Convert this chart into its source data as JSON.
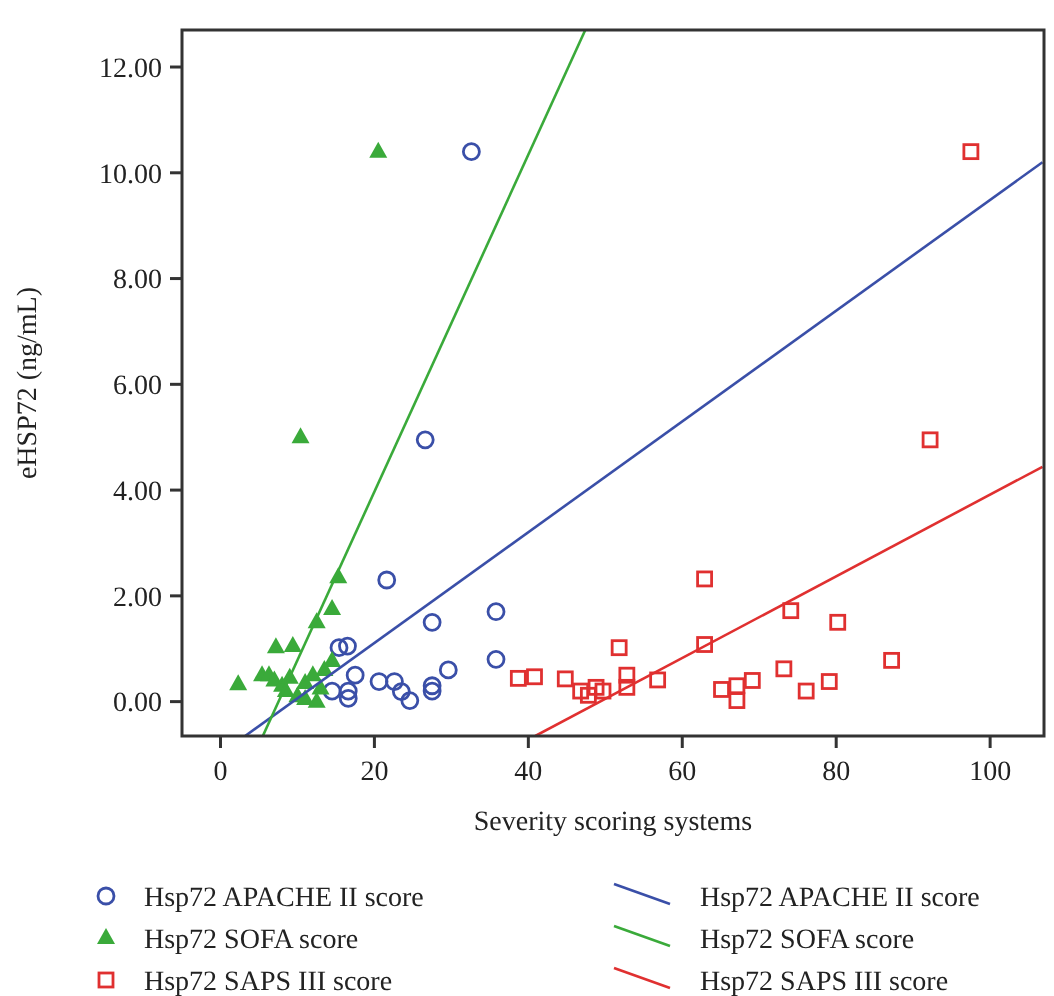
{
  "chart_data": {
    "type": "scatter",
    "xlabel": "Severity scoring systems",
    "ylabel": "eHSP72 (ng/mL)",
    "xlim": [
      -5,
      107
    ],
    "ylim": [
      -0.65,
      12.7
    ],
    "xticks": [
      0,
      20,
      40,
      60,
      80,
      100
    ],
    "yticks": [
      {
        "value": 0,
        "label": "0.00"
      },
      {
        "value": 2,
        "label": "2.00"
      },
      {
        "value": 4,
        "label": "4.00"
      },
      {
        "value": 6,
        "label": "6.00"
      },
      {
        "value": 8,
        "label": "8.00"
      },
      {
        "value": 10,
        "label": "10.00"
      },
      {
        "value": 12,
        "label": "12.00"
      }
    ],
    "grid": false,
    "legend": "bottom",
    "series": [
      {
        "name": "Hsp72 APACHE II score",
        "marker": "circle",
        "color": "#3a4fa8",
        "x": [
          32.6,
          26.6,
          21.6,
          35.8,
          27.5,
          15.4,
          16.5,
          35.8,
          29.6,
          17.5,
          20.6,
          22.6,
          23.5,
          24.6,
          27.5,
          27.5,
          16.6,
          16.6,
          14.5
        ],
        "values": [
          10.4,
          4.95,
          2.3,
          1.7,
          1.5,
          1.02,
          1.05,
          0.8,
          0.6,
          0.5,
          0.38,
          0.38,
          0.19,
          0.02,
          0.3,
          0.2,
          0.2,
          0.06,
          0.2
        ]
      },
      {
        "name": "Hsp72 SOFA score",
        "marker": "triangle",
        "color": "#3aaa3a",
        "x": [
          20.5,
          10.4,
          15.3,
          14.5,
          12.5,
          7.2,
          9.4,
          14.5,
          13.5,
          2.3,
          5.4,
          6.3,
          7,
          8,
          8.5,
          9,
          10,
          11,
          12,
          13,
          12.5,
          11
        ],
        "values": [
          10.4,
          5.0,
          2.35,
          1.75,
          1.5,
          1.03,
          1.05,
          0.77,
          0.6,
          0.33,
          0.5,
          0.5,
          0.4,
          0.3,
          0.2,
          0.45,
          0.1,
          0.35,
          0.5,
          0.25,
          0.0,
          0.05
        ]
      },
      {
        "name": "Hsp72 SAPS III score",
        "marker": "square",
        "color": "#e03030",
        "x": [
          97.5,
          92.2,
          62.9,
          74.1,
          80.2,
          51.8,
          62.9,
          87.2,
          73.2,
          44.8,
          52.8,
          52.8,
          56.8,
          46.8,
          47.8,
          48.8,
          49.7,
          65.1,
          67.1,
          67.1,
          69.1,
          76.1,
          79.1,
          38.7,
          40.8
        ],
        "values": [
          10.4,
          4.95,
          2.32,
          1.72,
          1.5,
          1.02,
          1.08,
          0.78,
          0.62,
          0.43,
          0.5,
          0.27,
          0.41,
          0.2,
          0.12,
          0.27,
          0.2,
          0.23,
          0.3,
          0.02,
          0.4,
          0.2,
          0.38,
          0.44,
          0.47
        ]
      },
      {
        "name": "Hsp72 APACHE II score",
        "type": "line",
        "color": "#3a4fa8",
        "x": [
          3.2,
          106.8
        ],
        "values": [
          -0.65,
          10.2
        ]
      },
      {
        "name": "Hsp72 SOFA score",
        "type": "line",
        "color": "#3aaa3a",
        "x": [
          5.5,
          47.4
        ],
        "values": [
          -0.65,
          12.7
        ]
      },
      {
        "name": "Hsp72 SAPS III score",
        "type": "line",
        "color": "#e03030",
        "x": [
          40.9,
          106.8
        ],
        "values": [
          -0.65,
          4.44
        ]
      }
    ]
  }
}
